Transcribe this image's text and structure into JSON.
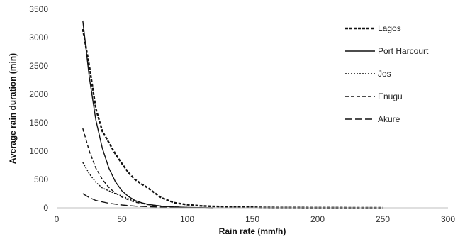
{
  "chart_data": {
    "type": "line",
    "xlabel": "Rain rate (mm/h)",
    "ylabel": "Average rain duration (min)",
    "xlim": [
      0,
      300
    ],
    "ylim": [
      0,
      3500
    ],
    "xticks": [
      "0",
      "50",
      "100",
      "150",
      "200",
      "250",
      "300"
    ],
    "yticks": [
      "0",
      "500",
      "1000",
      "1500",
      "2000",
      "2500",
      "3000",
      "3500"
    ],
    "grid": false,
    "legend_position": "top-right",
    "series": [
      {
        "name": "Lagos",
        "style": "short-dash-bold",
        "x": [
          20,
          25,
          30,
          35,
          40,
          45,
          50,
          55,
          60,
          65,
          70,
          80,
          90,
          100,
          110,
          120,
          130,
          140,
          150,
          160,
          200,
          250
        ],
        "y": [
          3150,
          2500,
          1750,
          1350,
          1150,
          950,
          780,
          620,
          500,
          420,
          350,
          180,
          90,
          55,
          35,
          25,
          20,
          15,
          10,
          5,
          2,
          0
        ]
      },
      {
        "name": "Port Harcourt",
        "style": "solid",
        "x": [
          20,
          22,
          25,
          30,
          35,
          40,
          45,
          50,
          55,
          60,
          65,
          70,
          80,
          90,
          100,
          110,
          120
        ],
        "y": [
          3300,
          2900,
          2300,
          1550,
          1050,
          700,
          460,
          300,
          200,
          130,
          90,
          60,
          30,
          15,
          8,
          4,
          0
        ]
      },
      {
        "name": "Jos",
        "style": "dotted",
        "x": [
          20,
          25,
          30,
          35,
          40,
          45,
          50,
          55,
          60,
          70,
          80,
          90,
          100
        ],
        "y": [
          800,
          600,
          450,
          350,
          300,
          250,
          210,
          160,
          120,
          60,
          30,
          15,
          5
        ]
      },
      {
        "name": "Enugu",
        "style": "dashed",
        "x": [
          20,
          25,
          30,
          35,
          40,
          45,
          50,
          55,
          60,
          70,
          80,
          90,
          100
        ],
        "y": [
          1400,
          1000,
          700,
          500,
          360,
          260,
          190,
          140,
          100,
          55,
          30,
          15,
          5
        ]
      },
      {
        "name": "Akure",
        "style": "long-dash",
        "x": [
          20,
          25,
          30,
          40,
          50,
          60,
          70,
          80,
          90,
          100
        ],
        "y": [
          250,
          180,
          130,
          80,
          50,
          30,
          20,
          12,
          6,
          2
        ]
      }
    ]
  }
}
